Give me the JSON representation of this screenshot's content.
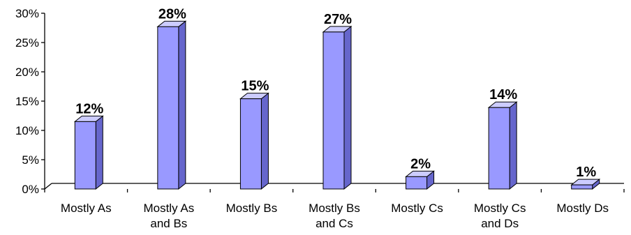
{
  "chart_data": {
    "type": "bar",
    "style": "3d-column",
    "categories": [
      [
        "Mostly As"
      ],
      [
        "Mostly As",
        "and Bs"
      ],
      [
        "Mostly Bs"
      ],
      [
        "Mostly Bs",
        "and Cs"
      ],
      [
        "Mostly Cs"
      ],
      [
        "Mostly Cs",
        "and Ds"
      ],
      [
        "Mostly Ds"
      ]
    ],
    "values": [
      11.5,
      27.7,
      15.4,
      26.8,
      2.1,
      13.9,
      0.7
    ],
    "data_labels": [
      "12%",
      "28%",
      "15%",
      "27%",
      "2%",
      "14%",
      "1%"
    ],
    "title": "",
    "xlabel": "",
    "ylabel": "",
    "ylim": [
      0,
      30
    ],
    "yticks": [
      "0%",
      "5%",
      "10%",
      "15%",
      "20%",
      "25%",
      "30%"
    ],
    "grid": false,
    "legend": "none",
    "colors": {
      "bar_front": "#9999ff",
      "bar_top": "#ccccff",
      "bar_side": "#6666cc",
      "axis": "#000000"
    }
  }
}
